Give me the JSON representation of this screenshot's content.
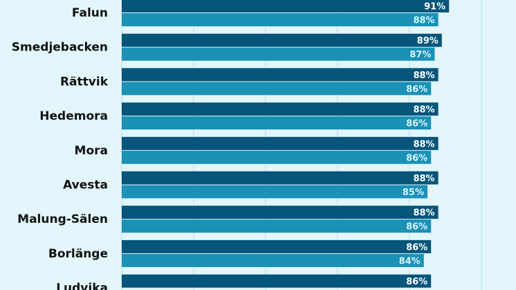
{
  "chart_data": {
    "type": "bar",
    "orientation": "horizontal",
    "categories": [
      "Falun",
      "Smedjebacken",
      "Rättvik",
      "Hedemora",
      "Mora",
      "Avesta",
      "Malung-Sälen",
      "Borlänge",
      "Ludvika"
    ],
    "series": [
      {
        "values": [
          91,
          89,
          88,
          88,
          88,
          88,
          88,
          86,
          86
        ],
        "labels": [
          "91%",
          "89%",
          "88%",
          "88%",
          "88%",
          "88%",
          "88%",
          "86%",
          "86%"
        ],
        "color": "#06557a",
        "label_color": "#ffffff"
      },
      {
        "values": [
          88,
          87,
          86,
          86,
          86,
          85,
          86,
          84,
          null
        ],
        "labels": [
          "88%",
          "87%",
          "86%",
          "86%",
          "86%",
          "85%",
          "86%",
          "84%",
          ""
        ],
        "color": "#1b91b6",
        "label_color": "#d8f3fb"
      }
    ],
    "grid": true,
    "background": "#e2f6fb",
    "grid_color": "#b6dde8"
  }
}
